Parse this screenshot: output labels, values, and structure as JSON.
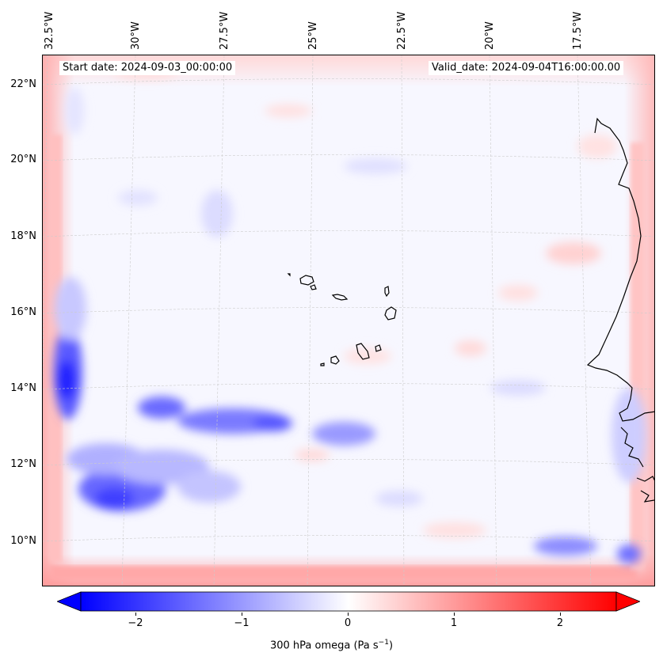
{
  "header": {
    "start_date": "Start date: 2024-09-03_00:00:00",
    "valid_date": "Valid_date: 2024-09-04T16:00:00.00"
  },
  "longitude_labels": [
    "32.5°W",
    "30°W",
    "27.5°W",
    "25°W",
    "22.5°W",
    "20°W",
    "17.5°W"
  ],
  "latitude_labels": [
    "22°N",
    "20°N",
    "18°N",
    "16°N",
    "14°N",
    "12°N",
    "10°N"
  ],
  "colorbar": {
    "label_main": "300 hPa omega (Pa s",
    "label_sup": "−1",
    "label_end": ")",
    "ticks": [
      "−2",
      "−1",
      "0",
      "1",
      "2"
    ],
    "min": -2.7,
    "max": 2.7,
    "neg_color": "#0000ff",
    "mid_color": "#ffffff",
    "pos_color": "#ff0000"
  },
  "map": {
    "coastline_color": "#000000",
    "gridline_color": "#c8c8c8"
  }
}
